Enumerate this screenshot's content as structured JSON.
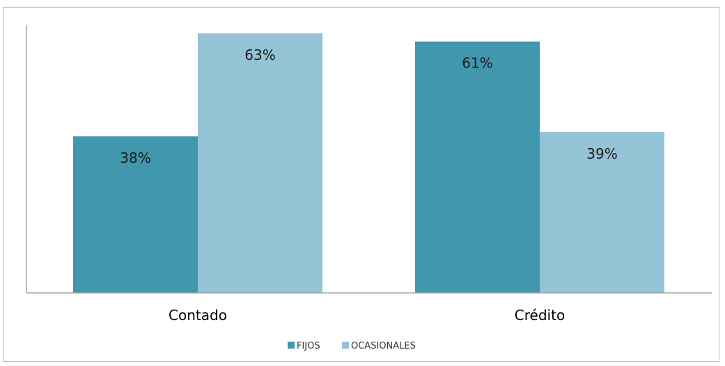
{
  "chart_data": {
    "type": "bar",
    "categories": [
      "Contado",
      "Crédito"
    ],
    "series": [
      {
        "name": "FIJOS",
        "values": [
          38,
          61
        ],
        "labels": [
          "38%",
          "61%"
        ],
        "color": "#4197ae"
      },
      {
        "name": "OCASIONALES",
        "values": [
          63,
          39
        ],
        "labels": [
          "63%",
          "39%"
        ],
        "color": "#93c3d5"
      }
    ],
    "title": "",
    "xlabel": "",
    "ylabel": "",
    "ylim": [
      0,
      65
    ],
    "grid": false,
    "legend_position": "bottom",
    "axis_color": "#a6a6a6"
  }
}
